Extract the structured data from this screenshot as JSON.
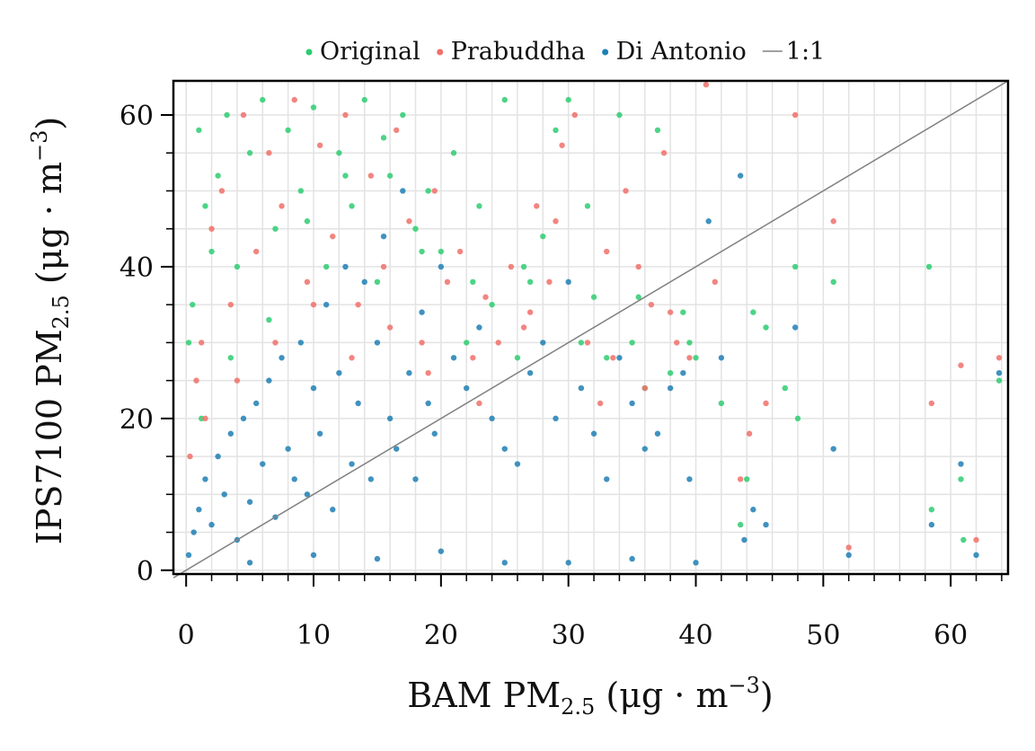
{
  "chart_data": {
    "type": "scatter",
    "title": "",
    "xlabel": {
      "main": "BAM  PM",
      "sub": "2.5",
      "unit_pre": " (μg · m",
      "unit_sup": "−3",
      "unit_post": ")"
    },
    "ylabel": {
      "main": "IPS7100  PM",
      "sub": "2.5",
      "unit_pre": " (μg · m",
      "unit_sup": "−3",
      "unit_post": ")"
    },
    "xlim": [
      -1,
      64.5
    ],
    "ylim": [
      -0.5,
      64.5
    ],
    "xticks": [
      0,
      10,
      20,
      30,
      40,
      50,
      60
    ],
    "yticks": [
      0,
      20,
      40,
      60
    ],
    "x_tick_labels": [
      "0",
      "10",
      "20",
      "30",
      "40",
      "50",
      "60"
    ],
    "y_tick_labels": [
      "0",
      "20",
      "40",
      "60"
    ],
    "grid": true,
    "legend_position": "top",
    "legend": [
      {
        "name": "Original",
        "color": "#2ecc71",
        "kind": "point"
      },
      {
        "name": "Prabuddha",
        "color": "#f0706a",
        "kind": "point"
      },
      {
        "name": "Di Antonio",
        "color": "#1f7fb4",
        "kind": "point"
      },
      {
        "name": "1:1",
        "color": "#808080",
        "kind": "line"
      }
    ],
    "reference_line": {
      "name": "1:1",
      "x": [
        -1,
        64.5
      ],
      "y": [
        -1,
        64.5
      ],
      "color": "#808080"
    },
    "series": [
      {
        "name": "Original",
        "color": "#2ecc71",
        "x": [
          0.2,
          0.5,
          1.0,
          1.5,
          2.0,
          2.5,
          3.2,
          4.0,
          5.0,
          6.0,
          7.0,
          8.0,
          9.0,
          10.0,
          11.0,
          12.0,
          13.0,
          14.0,
          15.0,
          16.0,
          17.0,
          18.0,
          19.0,
          20.0,
          21.0,
          22.0,
          23.0,
          24.0,
          25.0,
          26.0,
          27.0,
          28.0,
          29.0,
          30.0,
          31.0,
          32.0,
          33.0,
          34.0,
          35.0,
          36.0,
          37.0,
          38.0,
          39.0,
          40.0,
          42.0,
          43.5,
          44.0,
          44.5,
          45.5,
          47.0,
          47.8,
          48.0,
          50.8,
          58.3,
          58.5,
          60.8,
          61.0,
          63.8,
          1.2,
          3.5,
          6.5,
          9.5,
          12.5,
          15.5,
          18.5,
          22.5,
          26.5,
          31.5,
          35.5,
          39.5
        ],
        "y": [
          30.0,
          35.0,
          58.0,
          48.0,
          42.0,
          52.0,
          60.0,
          40.0,
          55.0,
          62.0,
          45.0,
          58.0,
          50.0,
          61.0,
          40.0,
          55.0,
          48.0,
          62.0,
          38.0,
          52.0,
          60.0,
          45.0,
          50.0,
          42.0,
          55.0,
          30.0,
          48.0,
          35.0,
          62.0,
          28.0,
          38.0,
          44.0,
          58.0,
          62.0,
          30.0,
          36.0,
          28.0,
          60.0,
          30.0,
          24.0,
          58.0,
          26.0,
          34.0,
          28.0,
          22.0,
          6.0,
          12.0,
          34.0,
          32.0,
          24.0,
          40.0,
          20.0,
          38.0,
          40.0,
          8.0,
          12.0,
          4.0,
          25.0,
          20.0,
          28.0,
          33.0,
          46.0,
          52.0,
          57.0,
          42.0,
          38.0,
          40.0,
          48.0,
          36.0,
          30.0
        ]
      },
      {
        "name": "Prabuddha",
        "color": "#f0706a",
        "x": [
          0.3,
          0.8,
          1.2,
          2.0,
          2.8,
          3.5,
          4.5,
          5.5,
          6.5,
          7.5,
          8.5,
          9.5,
          10.5,
          11.5,
          12.5,
          13.5,
          14.5,
          15.5,
          16.5,
          17.5,
          18.5,
          19.5,
          20.5,
          21.5,
          22.5,
          23.5,
          24.5,
          25.5,
          26.5,
          27.5,
          28.5,
          29.5,
          30.5,
          31.5,
          32.5,
          33.5,
          34.5,
          35.5,
          36.5,
          37.5,
          38.5,
          39.5,
          40.8,
          41.5,
          43.5,
          44.2,
          45.5,
          47.8,
          50.8,
          52.0,
          58.5,
          60.8,
          62.0,
          63.8,
          1.5,
          4.0,
          7.0,
          10.0,
          13.0,
          16.0,
          19.0,
          23.0,
          27.0,
          29.0,
          33.0,
          36.0,
          38.0
        ],
        "y": [
          15.0,
          25.0,
          30.0,
          45.0,
          50.0,
          35.0,
          60.0,
          42.0,
          55.0,
          48.0,
          62.0,
          38.0,
          56.0,
          44.0,
          60.0,
          35.0,
          52.0,
          40.0,
          58.0,
          46.0,
          30.0,
          50.0,
          38.0,
          42.0,
          28.0,
          36.0,
          30.0,
          40.0,
          32.0,
          48.0,
          38.0,
          56.0,
          60.0,
          30.0,
          22.0,
          28.0,
          50.0,
          40.0,
          35.0,
          55.0,
          30.0,
          28.0,
          64.0,
          38.0,
          12.0,
          18.0,
          22.0,
          60.0,
          46.0,
          3.0,
          22.0,
          27.0,
          4.0,
          28.0,
          20.0,
          25.0,
          30.0,
          35.0,
          28.0,
          32.0,
          26.0,
          22.0,
          34.0,
          46.0,
          42.0,
          24.0,
          34.0
        ]
      },
      {
        "name": "Di Antonio",
        "color": "#1f7fb4",
        "x": [
          0.2,
          0.6,
          1.0,
          1.5,
          2.0,
          2.5,
          3.0,
          3.5,
          4.0,
          4.5,
          5.0,
          5.5,
          6.0,
          6.5,
          7.0,
          7.5,
          8.0,
          8.5,
          9.0,
          9.5,
          10.0,
          10.5,
          11.0,
          11.5,
          12.0,
          12.5,
          13.0,
          13.5,
          14.0,
          14.5,
          15.0,
          15.5,
          16.0,
          16.5,
          17.0,
          17.5,
          18.0,
          18.5,
          19.0,
          19.5,
          20.0,
          21.0,
          22.0,
          23.0,
          24.0,
          25.0,
          26.0,
          27.0,
          28.0,
          29.0,
          30.0,
          31.0,
          32.0,
          33.0,
          34.0,
          35.0,
          36.0,
          37.0,
          38.0,
          39.0,
          39.5,
          41.0,
          42.0,
          43.5,
          43.8,
          44.5,
          45.5,
          47.8,
          50.8,
          52.0,
          58.5,
          60.8,
          62.0,
          63.8,
          5.0,
          10.0,
          15.0,
          20.0,
          25.0,
          30.0,
          35.0,
          40.0
        ],
        "y": [
          2.0,
          5.0,
          8.0,
          12.0,
          6.0,
          15.0,
          10.0,
          18.0,
          4.0,
          20.0,
          9.0,
          22.0,
          14.0,
          25.0,
          7.0,
          28.0,
          16.0,
          12.0,
          30.0,
          10.0,
          24.0,
          18.0,
          35.0,
          8.0,
          26.0,
          40.0,
          14.0,
          22.0,
          38.0,
          12.0,
          30.0,
          44.0,
          20.0,
          16.0,
          50.0,
          26.0,
          12.0,
          34.0,
          22.0,
          18.0,
          40.0,
          28.0,
          24.0,
          32.0,
          20.0,
          16.0,
          14.0,
          26.0,
          30.0,
          20.0,
          38.0,
          24.0,
          18.0,
          12.0,
          28.0,
          22.0,
          16.0,
          18.0,
          24.0,
          26.0,
          12.0,
          46.0,
          28.0,
          52.0,
          4.0,
          8.0,
          6.0,
          32.0,
          16.0,
          2.0,
          6.0,
          14.0,
          2.0,
          26.0,
          1.0,
          2.0,
          1.5,
          2.5,
          1.0,
          1.0,
          1.5,
          1.0
        ]
      }
    ]
  }
}
